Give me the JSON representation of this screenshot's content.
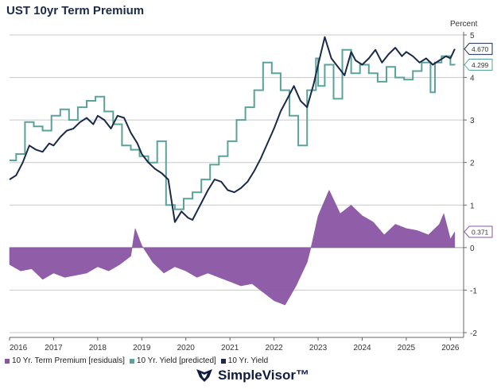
{
  "title": "UST 10yr Term Premium",
  "brand": "SimpleVisor™",
  "colors": {
    "premium": "#8a55a3",
    "predicted": "#5aa39a",
    "yield": "#1b2a4a",
    "grid": "#c8c8c8"
  },
  "chart_data": {
    "type": "line",
    "title": "UST 10yr Term Premium",
    "ylabel": "Percent",
    "ylim": [
      -2,
      5
    ],
    "xlim": [
      2016,
      2026.3
    ],
    "y_ticks": [
      "-2",
      "-1",
      "0",
      "1",
      "2",
      "3",
      "4",
      "5"
    ],
    "x_ticks": [
      "2016",
      "2017",
      "2018",
      "2019",
      "2020",
      "2021",
      "2022",
      "2023",
      "2024",
      "2025",
      "2026"
    ],
    "grid": true,
    "legend_position": "bottom-left",
    "last_value_labels": [
      {
        "series": "10 Yr. Yield",
        "value": "4.670"
      },
      {
        "series": "10 Yr. Yield [predicted]",
        "value": "4.299"
      },
      {
        "series": "10 Yr. Term Premium [residuals]",
        "value": "0.371"
      }
    ],
    "series": [
      {
        "name": "10 Yr. Term Premium [residuals]",
        "kind": "area",
        "x": [
          2016.0,
          2016.25,
          2016.5,
          2016.75,
          2017.0,
          2017.25,
          2017.5,
          2017.75,
          2018.0,
          2018.25,
          2018.5,
          2018.75,
          2018.85,
          2019.0,
          2019.25,
          2019.5,
          2019.75,
          2020.0,
          2020.25,
          2020.5,
          2020.75,
          2021.0,
          2021.25,
          2021.5,
          2021.75,
          2022.0,
          2022.25,
          2022.5,
          2022.75,
          2022.85,
          2023.0,
          2023.25,
          2023.5,
          2023.75,
          2024.0,
          2024.25,
          2024.5,
          2024.75,
          2025.0,
          2025.25,
          2025.5,
          2025.75,
          2025.85,
          2026.0,
          2026.1
        ],
        "y": [
          -0.4,
          -0.55,
          -0.5,
          -0.75,
          -0.6,
          -0.7,
          -0.65,
          -0.6,
          -0.45,
          -0.55,
          -0.4,
          -0.2,
          0.45,
          0.05,
          -0.35,
          -0.6,
          -0.45,
          -0.55,
          -0.7,
          -0.6,
          -0.7,
          -0.8,
          -0.9,
          -0.85,
          -1.05,
          -1.25,
          -1.35,
          -0.9,
          -0.35,
          0.05,
          0.75,
          1.35,
          0.8,
          1.0,
          0.75,
          0.6,
          0.3,
          0.55,
          0.45,
          0.4,
          0.3,
          0.55,
          0.8,
          0.2,
          0.371
        ]
      },
      {
        "name": "10 Yr. Yield [predicted]",
        "kind": "step",
        "x": [
          2016.0,
          2016.15,
          2016.35,
          2016.55,
          2016.75,
          2016.95,
          2017.15,
          2017.35,
          2017.55,
          2017.75,
          2017.95,
          2018.15,
          2018.35,
          2018.55,
          2018.75,
          2018.95,
          2019.15,
          2019.35,
          2019.55,
          2019.75,
          2019.95,
          2020.15,
          2020.35,
          2020.55,
          2020.75,
          2020.95,
          2021.15,
          2021.35,
          2021.55,
          2021.75,
          2021.95,
          2022.15,
          2022.35,
          2022.55,
          2022.75,
          2022.95,
          2023.0,
          2023.15,
          2023.35,
          2023.55,
          2023.75,
          2023.95,
          2024.15,
          2024.35,
          2024.55,
          2024.75,
          2024.95,
          2025.15,
          2025.35,
          2025.55,
          2025.65,
          2025.8,
          2026.0,
          2026.1
        ],
        "y": [
          2.05,
          2.2,
          2.95,
          2.85,
          2.75,
          3.1,
          3.25,
          3.0,
          3.3,
          3.45,
          3.55,
          3.2,
          2.9,
          2.4,
          2.3,
          2.15,
          2.0,
          2.5,
          1.0,
          0.9,
          1.15,
          1.3,
          1.6,
          1.95,
          2.15,
          2.5,
          3.0,
          3.3,
          3.7,
          4.35,
          4.1,
          3.7,
          3.1,
          2.4,
          3.7,
          4.45,
          3.8,
          4.3,
          3.5,
          4.65,
          4.1,
          4.3,
          4.1,
          3.9,
          4.25,
          4.0,
          3.95,
          4.15,
          4.35,
          3.65,
          4.35,
          4.5,
          4.3,
          4.299
        ]
      },
      {
        "name": "10 Yr. Yield",
        "kind": "line",
        "x": [
          2016.0,
          2016.15,
          2016.3,
          2016.45,
          2016.6,
          2016.75,
          2016.9,
          2017.0,
          2017.15,
          2017.3,
          2017.45,
          2017.6,
          2017.75,
          2017.9,
          2018.0,
          2018.15,
          2018.3,
          2018.45,
          2018.6,
          2018.75,
          2018.9,
          2019.0,
          2019.15,
          2019.3,
          2019.45,
          2019.6,
          2019.75,
          2019.9,
          2020.05,
          2020.15,
          2020.25,
          2020.35,
          2020.5,
          2020.65,
          2020.8,
          2020.95,
          2021.1,
          2021.25,
          2021.4,
          2021.55,
          2021.7,
          2021.85,
          2022.0,
          2022.15,
          2022.3,
          2022.45,
          2022.6,
          2022.75,
          2022.9,
          2023.0,
          2023.15,
          2023.3,
          2023.45,
          2023.6,
          2023.75,
          2023.85,
          2024.0,
          2024.15,
          2024.3,
          2024.45,
          2024.6,
          2024.75,
          2024.9,
          2025.0,
          2025.15,
          2025.3,
          2025.45,
          2025.6,
          2025.75,
          2025.9,
          2026.0,
          2026.1
        ],
        "y": [
          1.6,
          1.7,
          2.0,
          2.4,
          2.3,
          2.25,
          2.45,
          2.4,
          2.6,
          2.75,
          2.8,
          2.95,
          3.05,
          2.9,
          3.1,
          3.0,
          2.8,
          3.1,
          3.05,
          2.7,
          2.45,
          2.2,
          2.0,
          1.85,
          1.75,
          1.6,
          0.6,
          0.85,
          0.7,
          0.65,
          0.85,
          1.05,
          1.35,
          1.6,
          1.55,
          1.35,
          1.3,
          1.4,
          1.55,
          1.8,
          2.1,
          2.45,
          2.8,
          3.2,
          3.5,
          3.8,
          3.45,
          3.3,
          3.85,
          4.3,
          4.95,
          4.45,
          4.25,
          4.05,
          4.6,
          4.4,
          4.3,
          4.45,
          4.65,
          4.35,
          4.55,
          4.7,
          4.5,
          4.6,
          4.5,
          4.35,
          4.45,
          4.3,
          4.4,
          4.5,
          4.45,
          4.67
        ]
      }
    ]
  }
}
